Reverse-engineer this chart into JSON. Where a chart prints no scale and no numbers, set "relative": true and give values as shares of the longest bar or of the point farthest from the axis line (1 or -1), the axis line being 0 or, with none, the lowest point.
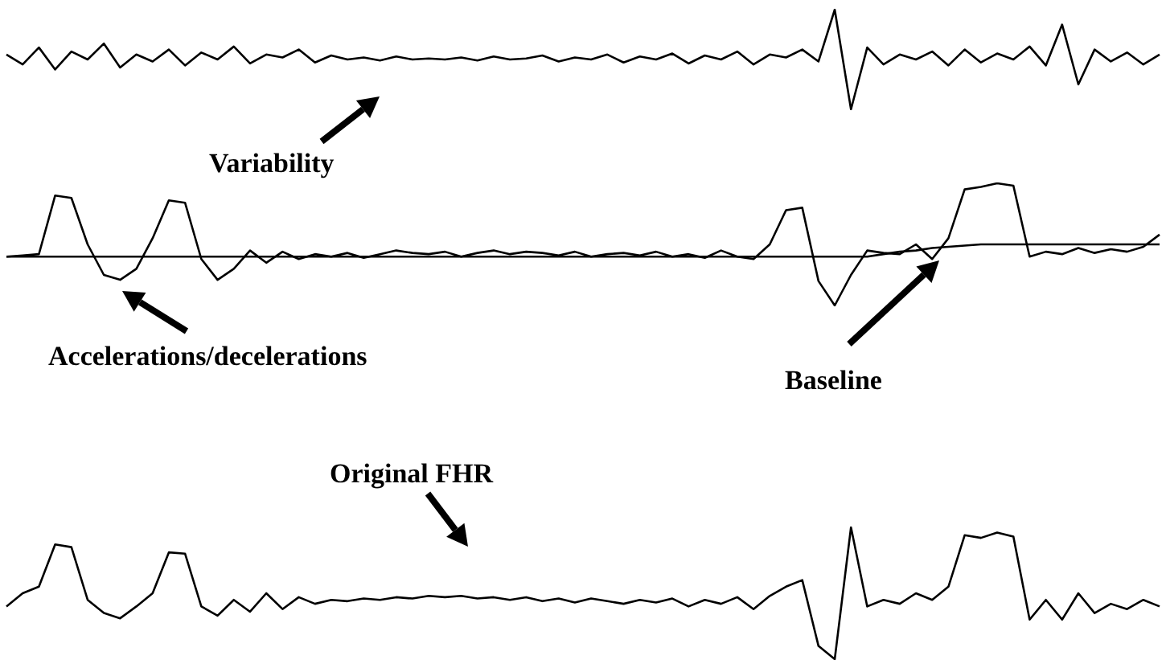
{
  "chart_data": [
    {
      "type": "line",
      "relative": true,
      "marker": "none",
      "legend": false,
      "annotations": [
        "Variability"
      ],
      "categories": [
        null,
        null,
        null,
        null,
        null,
        null,
        null,
        null,
        null,
        null,
        null,
        null,
        null,
        null,
        null,
        null,
        null,
        null,
        null,
        null,
        null,
        null,
        null,
        null,
        null,
        null,
        null,
        null,
        null,
        null,
        null,
        null,
        null,
        null,
        null,
        null,
        null,
        null,
        null,
        null,
        null,
        null,
        null,
        null,
        null,
        null,
        null,
        null,
        null,
        null,
        null,
        null,
        null,
        null,
        null,
        null,
        null,
        null,
        null,
        null,
        null,
        null,
        null,
        null,
        null,
        null,
        null,
        null,
        null,
        null,
        null,
        null
      ],
      "series": [
        {
          "color": "#000000",
          "values": [
            0.55,
            0.45,
            0.62,
            0.4,
            0.58,
            0.5,
            0.66,
            0.42,
            0.55,
            0.48,
            0.6,
            0.44,
            0.57,
            0.5,
            0.63,
            0.46,
            0.55,
            0.52,
            0.6,
            0.47,
            0.54,
            0.5,
            0.52,
            0.49,
            0.53,
            0.5,
            0.51,
            0.5,
            0.52,
            0.49,
            0.53,
            0.5,
            0.51,
            0.54,
            0.48,
            0.52,
            0.5,
            0.55,
            0.47,
            0.53,
            0.5,
            0.56,
            0.46,
            0.54,
            0.5,
            0.58,
            0.45,
            0.55,
            0.52,
            0.6,
            0.48,
            1,
            0,
            0.62,
            0.45,
            0.55,
            0.5,
            0.58,
            0.44,
            0.6,
            0.47,
            0.56,
            0.5,
            0.63,
            0.44,
            0.85,
            0.25,
            0.6,
            0.48,
            0.57,
            0.45,
            0.55
          ]
        }
      ]
    },
    {
      "type": "line",
      "relative": true,
      "marker": "none",
      "legend": false,
      "annotations": [
        "Accelerations/decelerations",
        "Baseline"
      ],
      "categories": [
        null,
        null,
        null,
        null,
        null,
        null,
        null,
        null,
        null,
        null,
        null,
        null,
        null,
        null,
        null,
        null,
        null,
        null,
        null,
        null,
        null,
        null,
        null,
        null,
        null,
        null,
        null,
        null,
        null,
        null,
        null,
        null,
        null,
        null,
        null,
        null,
        null,
        null,
        null,
        null,
        null,
        null,
        null,
        null,
        null,
        null,
        null,
        null,
        null,
        null,
        null,
        null,
        null,
        null,
        null,
        null,
        null,
        null,
        null,
        null,
        null,
        null,
        null,
        null,
        null,
        null,
        null,
        null,
        null,
        null,
        null,
        null
      ],
      "series": [
        {
          "color": "#000000",
          "values": [
            0.4,
            0.41,
            0.42,
            0.9,
            0.88,
            0.5,
            0.25,
            0.21,
            0.3,
            0.55,
            0.86,
            0.84,
            0.38,
            0.21,
            0.3,
            0.45,
            0.35,
            0.44,
            0.38,
            0.42,
            0.4,
            0.43,
            0.39,
            0.42,
            0.45,
            0.43,
            0.42,
            0.44,
            0.4,
            0.43,
            0.45,
            0.42,
            0.44,
            0.43,
            0.41,
            0.44,
            0.4,
            0.42,
            0.43,
            0.41,
            0.44,
            0.4,
            0.42,
            0.39,
            0.45,
            0.4,
            0.38,
            0.5,
            0.78,
            0.8,
            0.2,
            0,
            0.25,
            0.45,
            0.43,
            0.42,
            0.5,
            0.38,
            0.55,
            0.95,
            0.97,
            1,
            0.98,
            0.4,
            0.44,
            0.42,
            0.47,
            0.43,
            0.46,
            0.44,
            0.48,
            0.58
          ]
        },
        {
          "color": "#000000",
          "values": [
            0.4,
            0.4,
            0.4,
            0.4,
            0.4,
            0.4,
            0.4,
            0.4,
            0.4,
            0.4,
            0.4,
            0.4,
            0.4,
            0.4,
            0.4,
            0.4,
            0.4,
            0.4,
            0.4,
            0.4,
            0.4,
            0.4,
            0.4,
            0.4,
            0.4,
            0.4,
            0.4,
            0.4,
            0.4,
            0.4,
            0.4,
            0.4,
            0.4,
            0.4,
            0.4,
            0.4,
            0.4,
            0.4,
            0.4,
            0.4,
            0.4,
            0.4,
            0.4,
            0.4,
            0.4,
            0.4,
            0.4,
            0.4,
            0.4,
            0.4,
            0.4,
            0.4,
            0.4,
            0.4,
            0.42,
            0.44,
            0.45,
            0.47,
            0.48,
            0.49,
            0.5,
            0.5,
            0.5,
            0.5,
            0.5,
            0.5,
            0.5,
            0.5,
            0.5,
            0.5,
            0.5,
            0.5
          ]
        }
      ]
    },
    {
      "type": "line",
      "relative": true,
      "marker": "none",
      "legend": false,
      "annotations": [
        "Original FHR"
      ],
      "categories": [
        null,
        null,
        null,
        null,
        null,
        null,
        null,
        null,
        null,
        null,
        null,
        null,
        null,
        null,
        null,
        null,
        null,
        null,
        null,
        null,
        null,
        null,
        null,
        null,
        null,
        null,
        null,
        null,
        null,
        null,
        null,
        null,
        null,
        null,
        null,
        null,
        null,
        null,
        null,
        null,
        null,
        null,
        null,
        null,
        null,
        null,
        null,
        null,
        null,
        null,
        null,
        null,
        null,
        null,
        null,
        null,
        null,
        null,
        null,
        null,
        null,
        null,
        null,
        null,
        null,
        null,
        null,
        null,
        null,
        null,
        null,
        null
      ],
      "series": [
        {
          "color": "#000000",
          "values": [
            0.4,
            0.5,
            0.55,
            0.87,
            0.85,
            0.45,
            0.35,
            0.31,
            0.4,
            0.5,
            0.81,
            0.8,
            0.4,
            0.33,
            0.45,
            0.36,
            0.5,
            0.38,
            0.47,
            0.42,
            0.45,
            0.44,
            0.46,
            0.45,
            0.47,
            0.46,
            0.48,
            0.47,
            0.48,
            0.46,
            0.47,
            0.45,
            0.47,
            0.44,
            0.46,
            0.43,
            0.46,
            0.44,
            0.42,
            0.45,
            0.43,
            0.46,
            0.4,
            0.45,
            0.42,
            0.47,
            0.38,
            0.48,
            0.55,
            0.6,
            0.1,
            0,
            1,
            0.4,
            0.45,
            0.42,
            0.5,
            0.45,
            0.55,
            0.94,
            0.92,
            0.96,
            0.93,
            0.3,
            0.45,
            0.3,
            0.5,
            0.35,
            0.42,
            0.38,
            0.45,
            0.4
          ]
        }
      ]
    }
  ]
}
